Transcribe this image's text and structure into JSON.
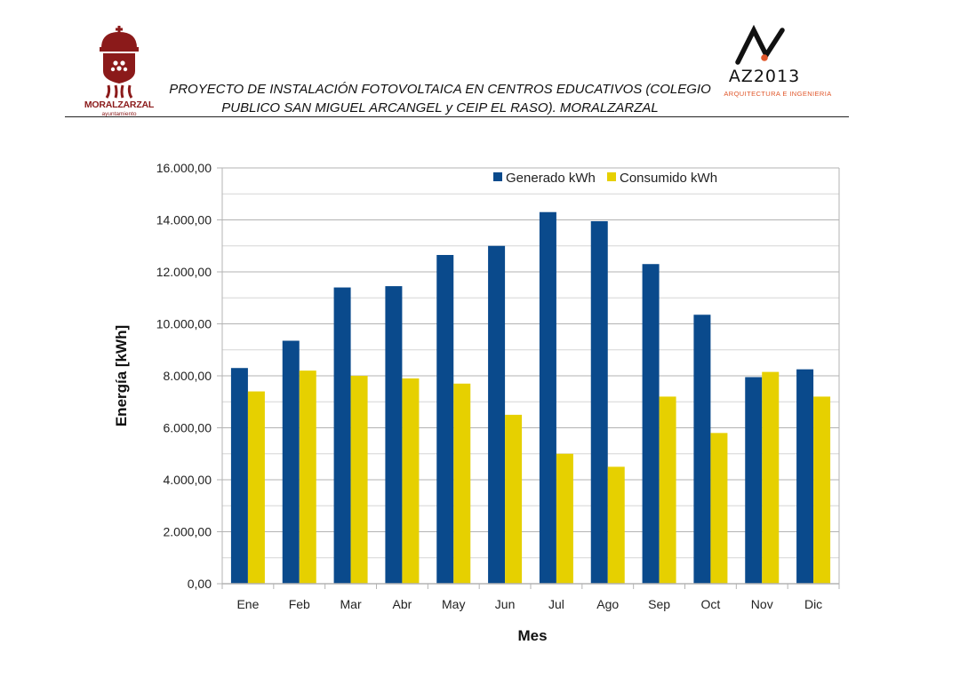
{
  "header": {
    "title_line1": "PROYECTO DE INSTALACIÓN FOTOVOLTAICA EN CENTROS EDUCATIVOS (COLEGIO",
    "title_line2": "PUBLICO SAN MIGUEL ARCANGEL y CEIP EL RASO). MORALZARZAL",
    "left_logo": {
      "name": "MORALZARZAL",
      "subtitle": "ayuntamiento",
      "color": "#8b1a1a"
    },
    "right_logo": {
      "name": "AZ2013",
      "tagline": "ARQUITECTURA E INGENIERIA",
      "accent": "#e0562a"
    }
  },
  "chart_data": {
    "type": "bar",
    "title": "",
    "xlabel": "Mes",
    "ylabel": "Energía [kWh]",
    "ylim": [
      0,
      16000
    ],
    "yticks": [
      0,
      2000,
      4000,
      6000,
      8000,
      10000,
      12000,
      14000,
      16000
    ],
    "ytick_labels": [
      "0,00",
      "2.000,00",
      "4.000,00",
      "6.000,00",
      "8.000,00",
      "10.000,00",
      "12.000,00",
      "14.000,00",
      "16.000,00"
    ],
    "grid": true,
    "legend_position": "top-right",
    "categories": [
      "Ene",
      "Feb",
      "Mar",
      "Abr",
      "May",
      "Jun",
      "Jul",
      "Ago",
      "Sep",
      "Oct",
      "Nov",
      "Dic"
    ],
    "series": [
      {
        "name": "Generado kWh",
        "color": "#0a4a8c",
        "values": [
          8300,
          9350,
          11400,
          11450,
          12650,
          13000,
          14300,
          13950,
          12300,
          10350,
          7950,
          8250
        ]
      },
      {
        "name": "Consumido kWh",
        "color": "#e6d000",
        "values": [
          7400,
          8200,
          8000,
          7900,
          7700,
          6500,
          5000,
          4500,
          7200,
          5800,
          8150,
          7200
        ]
      }
    ]
  }
}
